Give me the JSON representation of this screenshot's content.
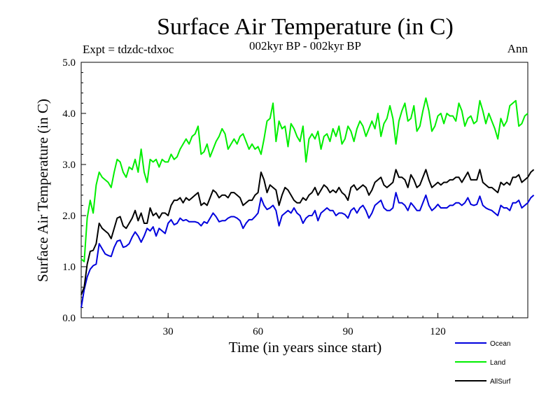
{
  "chart_data": {
    "type": "line",
    "title": "Surface Air Temperature (in C)",
    "subtitle": "002kyr BP - 002kyr BP",
    "expt_label": "Expt = tdzdc-tdxoc",
    "season_label": "Ann",
    "xlabel": "Time (in years since start)",
    "ylabel": "Surface Air Temperature (in C)",
    "xlim": [
      1,
      150
    ],
    "ylim": [
      0,
      5
    ],
    "xticks": [
      30,
      60,
      90,
      120
    ],
    "xtick_labels": [
      "30",
      "60",
      "90",
      "120"
    ],
    "yticks": [
      0,
      1,
      2,
      3,
      4,
      5
    ],
    "ytick_labels": [
      "0.0",
      "1.0",
      "2.0",
      "3.0",
      "4.0",
      "5.0"
    ],
    "legend_position": "bottom-right",
    "series": [
      {
        "name": "Ocean",
        "color": "#0000dd",
        "values": [
          0.2,
          0.55,
          0.8,
          0.95,
          1.02,
          1.05,
          1.45,
          1.35,
          1.25,
          1.22,
          1.2,
          1.38,
          1.5,
          1.52,
          1.38,
          1.4,
          1.45,
          1.58,
          1.68,
          1.6,
          1.48,
          1.6,
          1.75,
          1.7,
          1.78,
          1.6,
          1.75,
          1.7,
          1.65,
          1.85,
          1.92,
          1.82,
          1.85,
          1.95,
          1.9,
          1.92,
          1.88,
          1.88,
          1.88,
          1.86,
          1.8,
          1.88,
          1.85,
          1.95,
          2.05,
          1.98,
          1.88,
          1.9,
          1.9,
          1.95,
          1.98,
          1.98,
          1.95,
          1.9,
          1.75,
          1.85,
          1.92,
          1.92,
          1.98,
          2.05,
          2.35,
          2.2,
          2.12,
          2.15,
          2.2,
          2.1,
          1.8,
          2.0,
          2.05,
          2.1,
          2.05,
          2.15,
          2.05,
          2.0,
          1.85,
          1.95,
          2.0,
          2.0,
          2.1,
          1.9,
          2.05,
          2.1,
          2.15,
          2.1,
          2.1,
          2.0,
          2.05,
          2.05,
          2.02,
          1.95,
          2.1,
          2.15,
          2.05,
          2.15,
          2.2,
          2.1,
          1.95,
          2.05,
          2.2,
          2.25,
          2.3,
          2.15,
          2.1,
          2.1,
          2.15,
          2.45,
          2.25,
          2.25,
          2.2,
          2.1,
          2.25,
          2.18,
          2.1,
          2.1,
          2.25,
          2.4,
          2.2,
          2.1,
          2.15,
          2.22,
          2.15,
          2.15,
          2.15,
          2.2,
          2.2,
          2.25,
          2.25,
          2.2,
          2.25,
          2.35,
          2.22,
          2.2,
          2.22,
          2.38,
          2.2,
          2.15,
          2.12,
          2.1,
          2.05,
          2.0,
          2.2,
          2.15,
          2.15,
          2.1,
          2.25,
          2.25,
          2.3,
          2.15,
          2.2,
          2.25,
          2.35,
          2.4
        ]
      },
      {
        "name": "Land",
        "color": "#00ee00",
        "values": [
          1.15,
          1.1,
          1.95,
          2.3,
          2.05,
          2.6,
          2.85,
          2.75,
          2.7,
          2.65,
          2.55,
          2.85,
          3.1,
          3.05,
          2.85,
          2.75,
          2.95,
          2.9,
          3.1,
          2.85,
          3.3,
          2.85,
          2.65,
          3.1,
          3.05,
          3.1,
          2.95,
          3.1,
          3.05,
          3.05,
          3.2,
          3.1,
          3.15,
          3.3,
          3.4,
          3.5,
          3.4,
          3.55,
          3.6,
          3.75,
          3.2,
          3.25,
          3.4,
          3.15,
          3.3,
          3.45,
          3.55,
          3.7,
          3.6,
          3.3,
          3.4,
          3.5,
          3.4,
          3.55,
          3.6,
          3.45,
          3.3,
          3.4,
          3.3,
          3.35,
          3.2,
          3.5,
          3.85,
          3.9,
          4.2,
          3.45,
          3.85,
          3.7,
          3.75,
          3.35,
          3.8,
          3.7,
          3.55,
          3.45,
          3.75,
          3.05,
          3.5,
          3.6,
          3.5,
          3.65,
          3.3,
          3.55,
          3.6,
          3.45,
          3.7,
          3.55,
          3.75,
          3.4,
          3.5,
          3.75,
          3.65,
          3.45,
          3.7,
          3.85,
          3.75,
          3.55,
          3.7,
          3.85,
          3.7,
          4.0,
          3.55,
          3.8,
          3.9,
          4.15,
          3.9,
          3.4,
          3.85,
          4.05,
          4.2,
          3.85,
          3.9,
          4.15,
          3.65,
          3.75,
          4.05,
          4.3,
          4.05,
          3.65,
          3.75,
          3.95,
          4.0,
          3.8,
          4.0,
          3.95,
          3.95,
          3.85,
          4.2,
          4.05,
          3.75,
          3.9,
          3.95,
          3.8,
          3.85,
          4.25,
          4.05,
          3.8,
          4.0,
          3.85,
          3.7,
          3.5,
          3.9,
          3.75,
          3.85,
          4.15,
          4.2,
          4.25,
          3.75,
          3.8,
          3.95,
          4.0
        ]
      },
      {
        "name": "AllSurf",
        "color": "#000000",
        "values": [
          0.45,
          0.6,
          1.05,
          1.3,
          1.32,
          1.45,
          1.85,
          1.75,
          1.7,
          1.65,
          1.55,
          1.75,
          1.95,
          1.98,
          1.8,
          1.75,
          1.85,
          1.95,
          2.1,
          1.9,
          2.05,
          1.85,
          1.85,
          2.15,
          2.0,
          2.05,
          1.95,
          2.05,
          2.05,
          2.0,
          2.2,
          2.3,
          2.3,
          2.35,
          2.25,
          2.35,
          2.3,
          2.35,
          2.4,
          2.45,
          2.2,
          2.25,
          2.2,
          2.35,
          2.5,
          2.45,
          2.35,
          2.4,
          2.4,
          2.35,
          2.45,
          2.45,
          2.4,
          2.35,
          2.2,
          2.25,
          2.3,
          2.3,
          2.4,
          2.45,
          2.85,
          2.7,
          2.45,
          2.6,
          2.55,
          2.5,
          2.2,
          2.4,
          2.55,
          2.5,
          2.4,
          2.3,
          2.25,
          2.25,
          2.35,
          2.3,
          2.4,
          2.45,
          2.55,
          2.4,
          2.5,
          2.6,
          2.55,
          2.45,
          2.5,
          2.45,
          2.55,
          2.45,
          2.4,
          2.3,
          2.55,
          2.6,
          2.5,
          2.55,
          2.6,
          2.55,
          2.4,
          2.5,
          2.65,
          2.7,
          2.75,
          2.6,
          2.55,
          2.6,
          2.65,
          2.9,
          2.75,
          2.75,
          2.7,
          2.55,
          2.8,
          2.7,
          2.55,
          2.6,
          2.75,
          2.9,
          2.7,
          2.55,
          2.6,
          2.65,
          2.6,
          2.65,
          2.65,
          2.7,
          2.7,
          2.75,
          2.75,
          2.65,
          2.75,
          2.85,
          2.7,
          2.7,
          2.7,
          2.9,
          2.65,
          2.6,
          2.55,
          2.55,
          2.5,
          2.45,
          2.65,
          2.6,
          2.65,
          2.6,
          2.75,
          2.75,
          2.8,
          2.65,
          2.7,
          2.75,
          2.85,
          2.9
        ]
      }
    ]
  }
}
